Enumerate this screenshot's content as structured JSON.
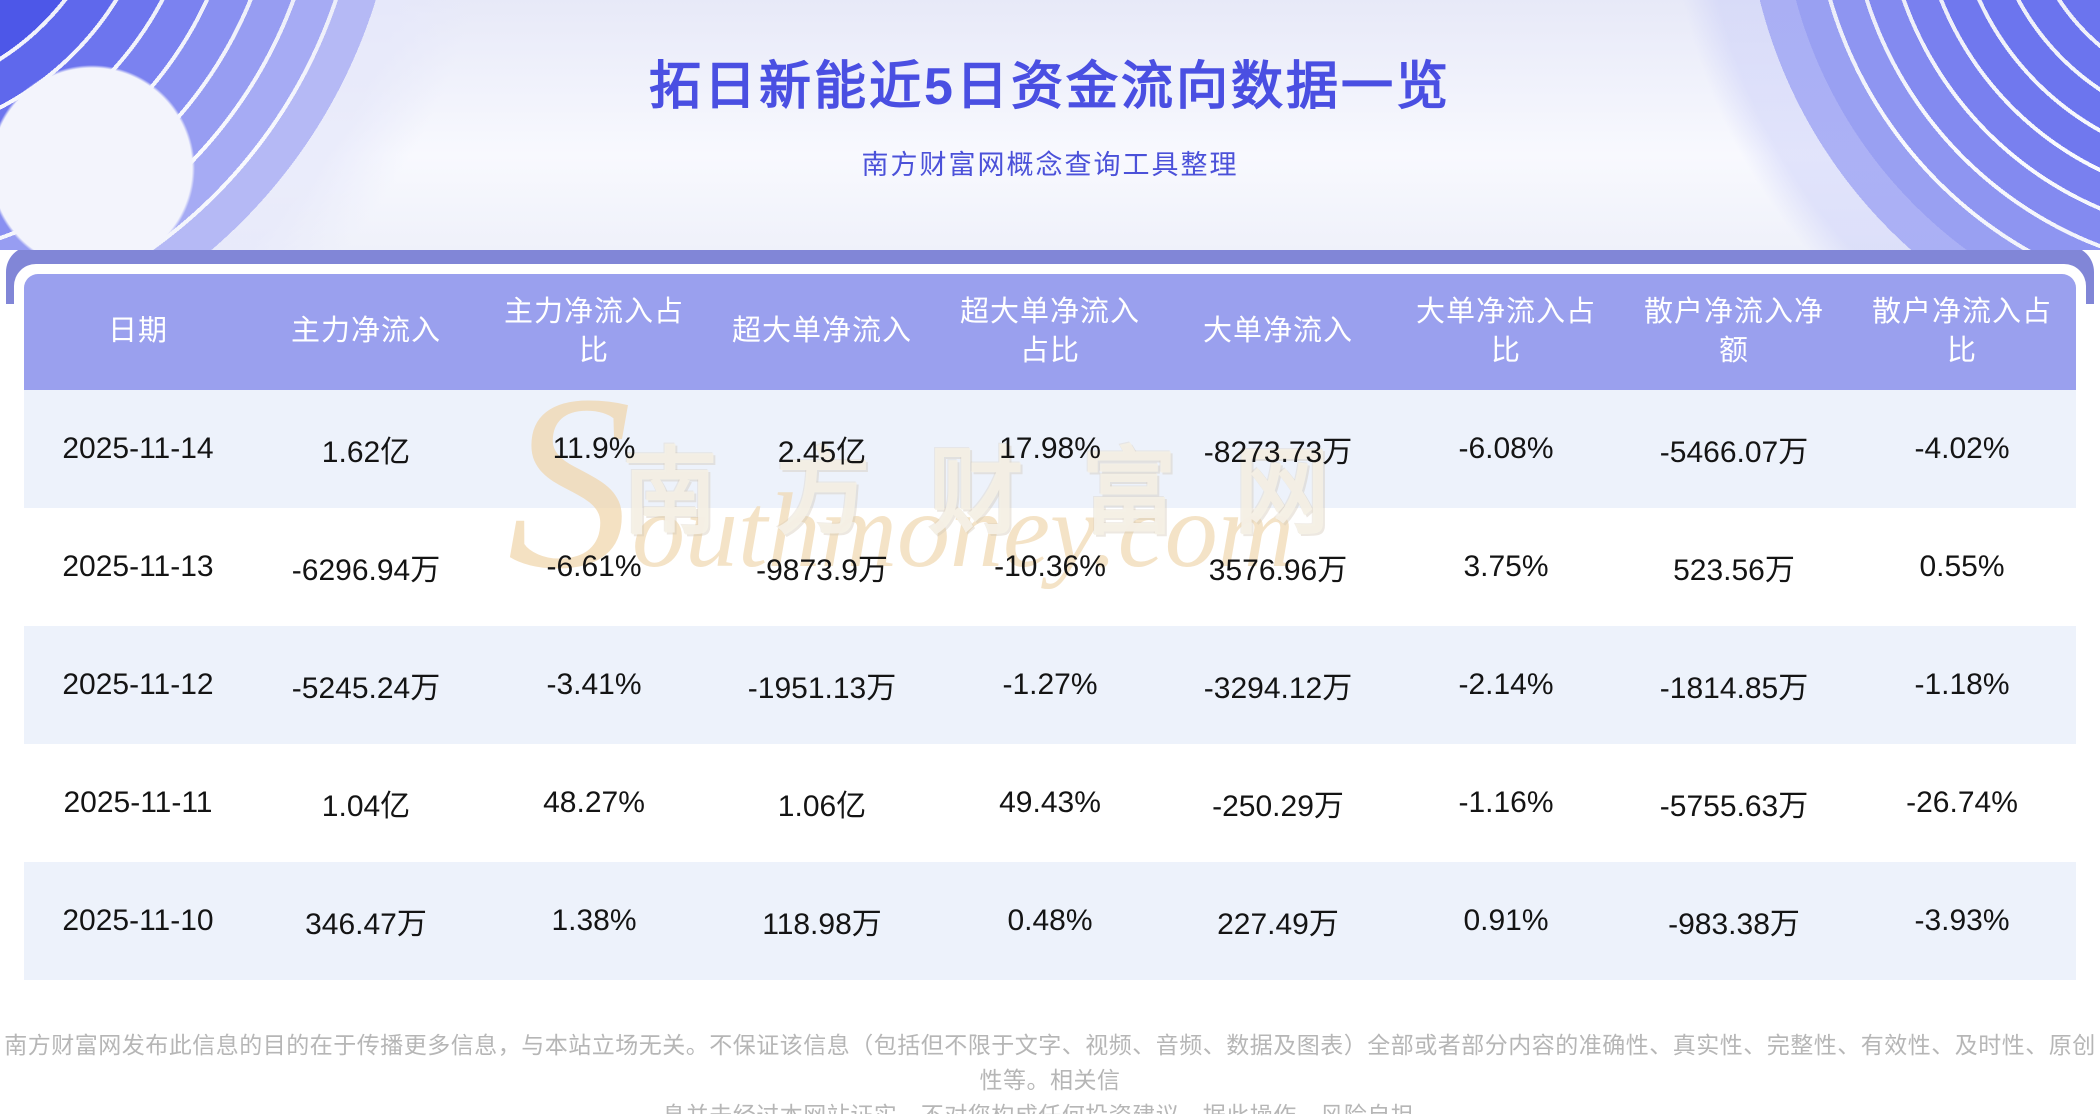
{
  "header": {
    "title": "拓日新能近5日资金流向数据一览",
    "subtitle": "南方财富网概念查询工具整理"
  },
  "table": {
    "columns": [
      "日期",
      "主力净流入",
      "主力净流入占\n比",
      "超大单净流入",
      "超大单净流入\n占比",
      "大单净流入",
      "大单净流入占\n比",
      "散户净流入净\n额",
      "散户净流入占\n比"
    ],
    "rows": [
      [
        "2025-11-14",
        "1.62亿",
        "11.9%",
        "2.45亿",
        "17.98%",
        "-8273.73万",
        "-6.08%",
        "-5466.07万",
        "-4.02%"
      ],
      [
        "2025-11-13",
        "-6296.94万",
        "-6.61%",
        "-9873.9万",
        "-10.36%",
        "3576.96万",
        "3.75%",
        "523.56万",
        "0.55%"
      ],
      [
        "2025-11-12",
        "-5245.24万",
        "-3.41%",
        "-1951.13万",
        "-1.27%",
        "-3294.12万",
        "-2.14%",
        "-1814.85万",
        "-1.18%"
      ],
      [
        "2025-11-11",
        "1.04亿",
        "48.27%",
        "1.06亿",
        "49.43%",
        "-250.29万",
        "-1.16%",
        "-5755.63万",
        "-26.74%"
      ],
      [
        "2025-11-10",
        "346.47万",
        "1.38%",
        "118.98万",
        "0.48%",
        "227.49万",
        "0.91%",
        "-983.38万",
        "-3.93%"
      ]
    ]
  },
  "watermark": {
    "cn": "南方财富网",
    "en_first": "S",
    "en_rest": "outhmoney.com"
  },
  "footer": {
    "line1": "南方财富网发布此信息的目的在于传播更多信息，与本站立场无关。不保证该信息（包括但不限于文字、视频、音频、数据及图表）全部或者部分内容的准确性、真实性、完整性、有效性、及时性、原创性等。相关信",
    "line2": "息并未经过本网站证实，不对您构成任何投资建议，据此操作，风险自担。"
  },
  "colors": {
    "title_accent": "#4a4fe2",
    "banner_stripe_blue": "#5f68ec",
    "band_purple": "#8186d7",
    "table_header_bg": "#9aa0ee",
    "table_header_text": "#ffffff",
    "row_alt_bg": "#edf2fb",
    "cell_text": "#141414",
    "watermark_tan": "#f0d7b0",
    "footer_gray": "#b6b6b6"
  }
}
